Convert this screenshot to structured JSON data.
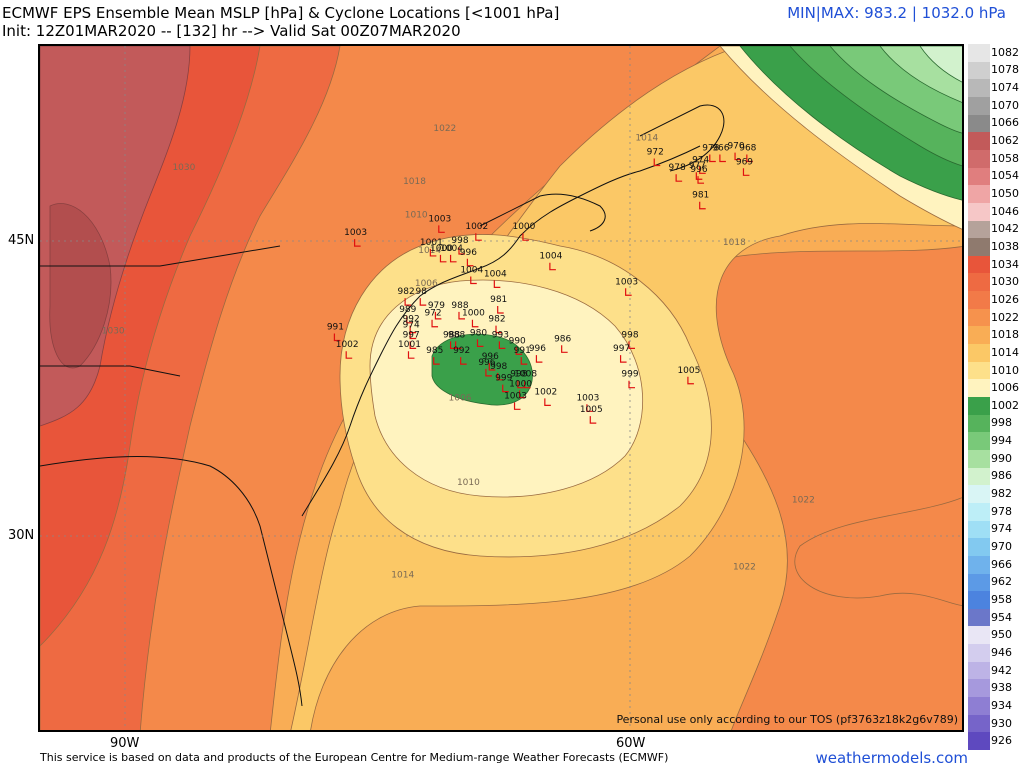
{
  "header": {
    "title_line1": "ECMWF EPS Ensemble Mean MSLP [hPa] & Cyclone Locations [<1001 hPa]",
    "title_line2": "Init: 12Z01MAR2020 -- [132] hr --> Valid Sat 00Z07MAR2020",
    "minmax": "MIN|MAX: 983.2 | 1032.0 hPa"
  },
  "axes": {
    "lat_labels": [
      "45N",
      "30N"
    ],
    "lon_labels": [
      "90W",
      "60W"
    ]
  },
  "footer": {
    "source": "This service is based on data and products of the European Centre for Medium-range Weather Forecasts (ECMWF)",
    "brand": "weathermodels.com",
    "tos": "Personal use only according to our TOS (pf3763z18k2g6v789)"
  },
  "colorbar": {
    "labels": [
      "1082",
      "1078",
      "1074",
      "1070",
      "1066",
      "1062",
      "1058",
      "1054",
      "1050",
      "1046",
      "1042",
      "1038",
      "1034",
      "1030",
      "1026",
      "1022",
      "1018",
      "1014",
      "1010",
      "1006",
      "1002",
      "998",
      "994",
      "990",
      "986",
      "982",
      "978",
      "974",
      "970",
      "966",
      "962",
      "958",
      "954",
      "950",
      "946",
      "942",
      "938",
      "934",
      "930",
      "926"
    ],
    "colors": [
      "#e6e6e6",
      "#cfcfcf",
      "#b8b8b8",
      "#a0a0a0",
      "#8a8a8a",
      "#c25a5a",
      "#d06b6b",
      "#e07e7e",
      "#efa5a5",
      "#f6c7c7",
      "#b5a29a",
      "#8f7a6e",
      "#e8553a",
      "#ee6a42",
      "#f27a48",
      "#f6924d",
      "#f9ad55",
      "#fbc866",
      "#fde08a",
      "#fff3bf",
      "#3aa04a",
      "#56b35c",
      "#79c979",
      "#a7e0a0",
      "#d2f2cd",
      "#d9f5f5",
      "#bdeef7",
      "#9fdff5",
      "#82c9f0",
      "#6fb2ec",
      "#5c9ae6",
      "#4c83df",
      "#6b77c9",
      "#e9e6f5",
      "#d3cdee",
      "#bdb3e6",
      "#a699dd",
      "#8e7ed3",
      "#7664c9",
      "#5e49bf"
    ]
  },
  "lows": [
    {
      "v": "972",
      "lon": -58.5,
      "lat": 49.4
    },
    {
      "v": "978",
      "lon": -55.2,
      "lat": 49.6
    },
    {
      "v": "966",
      "lon": -54.6,
      "lat": 49.6
    },
    {
      "v": "970",
      "lon": -53.7,
      "lat": 49.7
    },
    {
      "v": "968",
      "lon": -53.0,
      "lat": 49.6
    },
    {
      "v": "974",
      "lon": -55.8,
      "lat": 49.0
    },
    {
      "v": "969",
      "lon": -53.2,
      "lat": 48.9
    },
    {
      "v": "978",
      "lon": -57.2,
      "lat": 48.6
    },
    {
      "v": "977",
      "lon": -56.0,
      "lat": 48.7
    },
    {
      "v": "996",
      "lon": -55.9,
      "lat": 48.5
    },
    {
      "v": "981",
      "lon": -55.8,
      "lat": 47.2
    },
    {
      "v": "1003",
      "lon": -76.3,
      "lat": 45.3
    },
    {
      "v": "1003",
      "lon": -71.3,
      "lat": 46.0
    },
    {
      "v": "1002",
      "lon": -69.1,
      "lat": 45.6
    },
    {
      "v": "1000",
      "lon": -66.3,
      "lat": 45.6
    },
    {
      "v": "1001",
      "lon": -71.8,
      "lat": 44.8
    },
    {
      "v": "998",
      "lon": -70.1,
      "lat": 44.9
    },
    {
      "v": "1000",
      "lon": -71.2,
      "lat": 44.5
    },
    {
      "v": "1004",
      "lon": -70.6,
      "lat": 44.5
    },
    {
      "v": "996",
      "lon": -69.6,
      "lat": 44.3
    },
    {
      "v": "1004",
      "lon": -64.7,
      "lat": 44.1
    },
    {
      "v": "1004",
      "lon": -69.4,
      "lat": 43.4
    },
    {
      "v": "1004",
      "lon": -68.0,
      "lat": 43.2
    },
    {
      "v": "1003",
      "lon": -60.2,
      "lat": 42.8
    },
    {
      "v": "982",
      "lon": -73.3,
      "lat": 42.3
    },
    {
      "v": "98",
      "lon": -72.4,
      "lat": 42.3
    },
    {
      "v": "981",
      "lon": -67.8,
      "lat": 41.9
    },
    {
      "v": "979",
      "lon": -71.5,
      "lat": 41.6
    },
    {
      "v": "988",
      "lon": -70.1,
      "lat": 41.6
    },
    {
      "v": "989",
      "lon": -73.2,
      "lat": 41.4
    },
    {
      "v": "972",
      "lon": -71.7,
      "lat": 41.2
    },
    {
      "v": "1000",
      "lon": -69.3,
      "lat": 41.2
    },
    {
      "v": "982",
      "lon": -67.9,
      "lat": 40.9
    },
    {
      "v": "992",
      "lon": -73.0,
      "lat": 40.9
    },
    {
      "v": "974",
      "lon": -73.0,
      "lat": 40.6
    },
    {
      "v": "991",
      "lon": -77.5,
      "lat": 40.5
    },
    {
      "v": "988",
      "lon": -70.6,
      "lat": 40.1
    },
    {
      "v": "988",
      "lon": -70.3,
      "lat": 40.1
    },
    {
      "v": "980",
      "lon": -69.0,
      "lat": 40.2
    },
    {
      "v": "993",
      "lon": -67.7,
      "lat": 40.1
    },
    {
      "v": "986",
      "lon": -64.0,
      "lat": 39.9
    },
    {
      "v": "998",
      "lon": -60.0,
      "lat": 40.1
    },
    {
      "v": "997",
      "lon": -73.0,
      "lat": 40.1
    },
    {
      "v": "990",
      "lon": -66.7,
      "lat": 39.8
    },
    {
      "v": "1002",
      "lon": -76.8,
      "lat": 39.6
    },
    {
      "v": "1001",
      "lon": -73.1,
      "lat": 39.6
    },
    {
      "v": "997",
      "lon": -60.5,
      "lat": 39.4
    },
    {
      "v": "996",
      "lon": -65.5,
      "lat": 39.4
    },
    {
      "v": "991",
      "lon": -66.4,
      "lat": 39.3
    },
    {
      "v": "985",
      "lon": -71.6,
      "lat": 39.3
    },
    {
      "v": "992",
      "lon": -70.0,
      "lat": 39.3
    },
    {
      "v": "996",
      "lon": -68.3,
      "lat": 39.0
    },
    {
      "v": "996",
      "lon": -68.5,
      "lat": 38.7
    },
    {
      "v": "998",
      "lon": -67.8,
      "lat": 38.5
    },
    {
      "v": "1005",
      "lon": -56.5,
      "lat": 38.3
    },
    {
      "v": "999",
      "lon": -60.0,
      "lat": 38.1
    },
    {
      "v": "998",
      "lon": -66.6,
      "lat": 38.1
    },
    {
      "v": "999",
      "lon": -67.5,
      "lat": 37.9
    },
    {
      "v": "1008",
      "lon": -66.2,
      "lat": 38.1
    },
    {
      "v": "1000",
      "lon": -66.5,
      "lat": 37.6
    },
    {
      "v": "1002",
      "lon": -65.0,
      "lat": 37.2
    },
    {
      "v": "1003",
      "lon": -66.8,
      "lat": 37.0
    },
    {
      "v": "1003",
      "lon": -62.5,
      "lat": 36.9
    },
    {
      "v": "1005",
      "lon": -62.3,
      "lat": 36.3
    }
  ],
  "isobar_labels": [
    {
      "v": "1030",
      "lon": -86.5,
      "lat": 48.6
    },
    {
      "v": "1030",
      "lon": -90.7,
      "lat": 40.3
    },
    {
      "v": "1022",
      "lon": -71.0,
      "lat": 50.6
    },
    {
      "v": "1018",
      "lon": -72.8,
      "lat": 47.9
    },
    {
      "v": "1014",
      "lon": -59.0,
      "lat": 50.1
    },
    {
      "v": "1014",
      "lon": -71.9,
      "lat": 44.4
    },
    {
      "v": "1010",
      "lon": -72.7,
      "lat": 46.2
    },
    {
      "v": "1018",
      "lon": -53.8,
      "lat": 44.8
    },
    {
      "v": "1006",
      "lon": -72.1,
      "lat": 42.7
    },
    {
      "v": "1006",
      "lon": -70.1,
      "lat": 36.9
    },
    {
      "v": "1010",
      "lon": -69.6,
      "lat": 32.6
    },
    {
      "v": "1014",
      "lon": -73.5,
      "lat": 27.9
    },
    {
      "v": "1022",
      "lon": -49.7,
      "lat": 31.7
    },
    {
      "v": "1022",
      "lon": -53.2,
      "lat": 28.3
    }
  ]
}
